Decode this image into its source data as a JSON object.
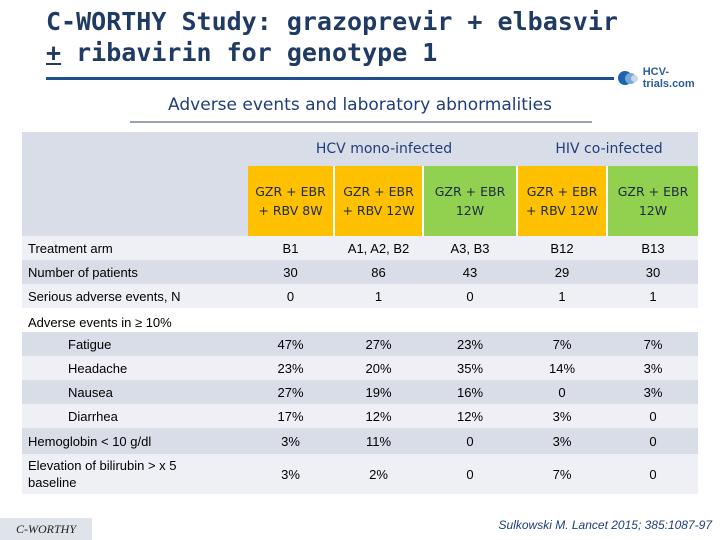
{
  "title": {
    "line1": "C-WORTHY Study: grazoprevir + elbasvir",
    "pm": "+",
    "line2_rest": " ribavirin for genotype 1"
  },
  "logo": {
    "text": "HCV-trials.com"
  },
  "subtitle": "Adverse events and laboratory abnormalities",
  "groups": {
    "hcv": "HCV mono-infected",
    "hiv": "HIV co-infected"
  },
  "columns": [
    {
      "l1": "GZR + EBR",
      "l2": "+ RBV 8W",
      "color": "#ffc000"
    },
    {
      "l1": "GZR + EBR",
      "l2": "+ RBV 12W",
      "color": "#ffc000"
    },
    {
      "l1": "GZR + EBR",
      "l2": "12W",
      "color": "#92d050"
    },
    {
      "l1": "GZR + EBR",
      "l2": "+ RBV 12W",
      "color": "#ffc000"
    },
    {
      "l1": "GZR + EBR",
      "l2": "12W",
      "color": "#92d050"
    }
  ],
  "rows": [
    {
      "label": "Treatment arm",
      "values": [
        "B1",
        "A1, A2,  B2",
        "A3, B3",
        "B12",
        "B13"
      ]
    },
    {
      "label": "Number of patients",
      "values": [
        "30",
        "86",
        "43",
        "29",
        "30"
      ]
    },
    {
      "label": "Serious adverse events, N",
      "values": [
        "0",
        "1",
        "0",
        "1",
        "1"
      ]
    },
    {
      "label": "Adverse events in ≥ 10%",
      "values": []
    },
    {
      "label": "Fatigue",
      "values": [
        "47%",
        "27%",
        "23%",
        "7%",
        "7%"
      ]
    },
    {
      "label": "Headache",
      "values": [
        "23%",
        "20%",
        "35%",
        "14%",
        "3%"
      ]
    },
    {
      "label": "Nausea",
      "values": [
        "27%",
        "19%",
        "16%",
        "0",
        "3%"
      ]
    },
    {
      "label": "Diarrhea",
      "values": [
        "17%",
        "12%",
        "12%",
        "3%",
        "0"
      ]
    },
    {
      "label": "Hemoglobin < 10 g/dl",
      "values": [
        "3%",
        "11%",
        "0",
        "3%",
        "0"
      ]
    },
    {
      "label": "Elevation of bilirubin > x 5 baseline",
      "values": [
        "3%",
        "2%",
        "0",
        "7%",
        "0"
      ]
    }
  ],
  "footer": {
    "left": "C-WORTHY",
    "citation": "Sulkowski M. Lancet 2015; 385:1087-97"
  }
}
